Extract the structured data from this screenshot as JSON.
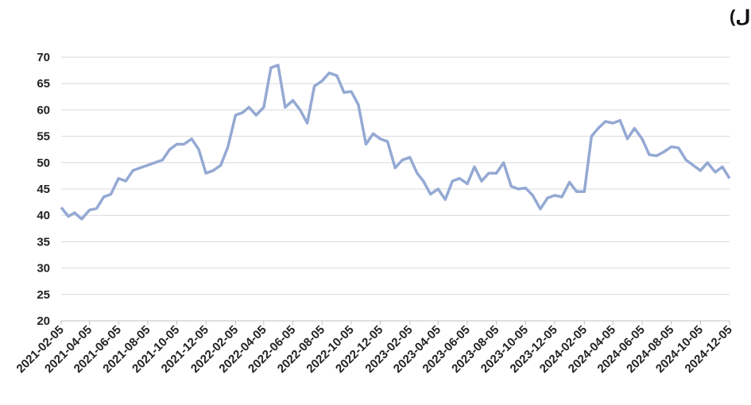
{
  "chart_data": {
    "type": "line",
    "title": "تطور حصة ملكية المستثمرين الأجانب المؤسسين في سوق الأسهم السعودي (مليار ريال)",
    "x": [
      "2021-02-05",
      "2021-02-20",
      "2021-03-05",
      "2021-03-20",
      "2021-04-05",
      "2021-04-20",
      "2021-05-05",
      "2021-05-20",
      "2021-06-05",
      "2021-06-20",
      "2021-07-05",
      "2021-07-20",
      "2021-08-05",
      "2021-08-20",
      "2021-09-05",
      "2021-09-20",
      "2021-10-05",
      "2021-10-20",
      "2021-11-05",
      "2021-11-20",
      "2021-12-05",
      "2021-12-20",
      "2022-01-05",
      "2022-01-20",
      "2022-02-05",
      "2022-02-20",
      "2022-03-05",
      "2022-03-20",
      "2022-04-05",
      "2022-04-20",
      "2022-05-05",
      "2022-05-20",
      "2022-06-05",
      "2022-06-20",
      "2022-07-05",
      "2022-07-20",
      "2022-08-05",
      "2022-08-20",
      "2022-09-05",
      "2022-09-20",
      "2022-10-05",
      "2022-10-20",
      "2022-11-05",
      "2022-11-20",
      "2022-12-05",
      "2022-12-20",
      "2023-01-05",
      "2023-01-20",
      "2023-02-05",
      "2023-02-20",
      "2023-03-05",
      "2023-03-20",
      "2023-04-05",
      "2023-04-20",
      "2023-05-05",
      "2023-05-20",
      "2023-06-05",
      "2023-06-20",
      "2023-07-05",
      "2023-07-20",
      "2023-08-05",
      "2023-08-20",
      "2023-09-05",
      "2023-09-20",
      "2023-10-05",
      "2023-10-20",
      "2023-11-05",
      "2023-11-20",
      "2023-12-05",
      "2023-12-20",
      "2024-01-05",
      "2024-01-20",
      "2024-02-05",
      "2024-02-20",
      "2024-03-05",
      "2024-03-20",
      "2024-04-05",
      "2024-04-20",
      "2024-05-05",
      "2024-05-20",
      "2024-06-05",
      "2024-06-20",
      "2024-07-05",
      "2024-07-20",
      "2024-08-05",
      "2024-08-20",
      "2024-09-05",
      "2024-09-20",
      "2024-10-05",
      "2024-10-20",
      "2024-11-05",
      "2024-11-20",
      "2024-12-05"
    ],
    "series": [
      {
        "color": "#94a9d3",
        "values": [
          41.5,
          39.8,
          40.5,
          39.3,
          41,
          41.3,
          43.5,
          44,
          47,
          46.5,
          48.5,
          49,
          49.5,
          50,
          50.5,
          52.5,
          53.5,
          53.5,
          54.5,
          52.5,
          48,
          48.5,
          49.5,
          53,
          59,
          59.5,
          60.5,
          59,
          60.5,
          68,
          68.5,
          60.5,
          61.8,
          60,
          57.5,
          64.5,
          65.5,
          67,
          66.5,
          63.3,
          63.5,
          61,
          53.5,
          55.5,
          54.5,
          54,
          49,
          50.5,
          51,
          48,
          46.5,
          44,
          45,
          43,
          46.5,
          47,
          46,
          49.2,
          46.5,
          48,
          48,
          50,
          45.5,
          45,
          45.2,
          43.8,
          41.2,
          43.3,
          43.8,
          43.5,
          46.3,
          44.5,
          44.5,
          55,
          56.5,
          57.8,
          57.5,
          58,
          54.5,
          56.5,
          54.5,
          51.5,
          51.3,
          52,
          53,
          52.8,
          50.5,
          49.5,
          48.5,
          50,
          48.2,
          49.2,
          47
        ]
      }
    ],
    "xlim": [
      "2021-02-05",
      "2024-12-05"
    ],
    "xticks": [
      "2021-02-05",
      "2021-04-05",
      "2021-06-05",
      "2021-08-05",
      "2021-10-05",
      "2021-12-05",
      "2022-02-05",
      "2022-04-05",
      "2022-06-05",
      "2022-08-05",
      "2022-10-05",
      "2022-12-05",
      "2023-02-05",
      "2023-04-05",
      "2023-06-05",
      "2023-08-05",
      "2023-10-05",
      "2023-12-05",
      "2024-02-05",
      "2024-04-05",
      "2024-06-05",
      "2024-08-05",
      "2024-10-05",
      "2024-12-05"
    ],
    "ylim": [
      20,
      70
    ],
    "yticks": [
      20,
      25,
      30,
      35,
      40,
      45,
      50,
      55,
      60,
      65,
      70
    ],
    "grid": true
  }
}
